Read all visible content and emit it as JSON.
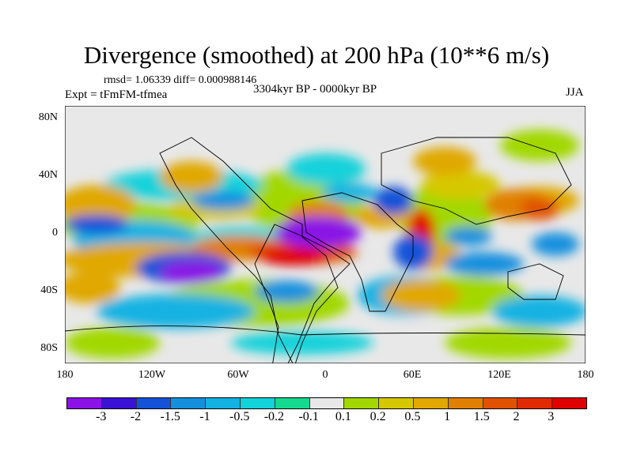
{
  "title": "Divergence (smoothed) at 200 hPa (10**6 m/s)",
  "stats": "rmsd= 1.06339 diff= 0.000988146",
  "experiment": "Expt = tFmFM-tfmea",
  "period": "3304kyr BP - 0000kyr BP",
  "season": "JJA",
  "y_ticks": [
    "80N",
    "40N",
    "0",
    "40S",
    "80S"
  ],
  "x_ticks": [
    "180",
    "120W",
    "60W",
    "0",
    "60E",
    "120E",
    "180"
  ],
  "colorbar": {
    "labels": [
      "-3",
      "-2",
      "-1.5",
      "-1",
      "-0.5",
      "-0.2",
      "-0.1",
      "0.1",
      "0.2",
      "0.5",
      "1",
      "1.5",
      "2",
      "3"
    ],
    "colors": [
      "#8a12e6",
      "#3a12d6",
      "#1452d8",
      "#1290de",
      "#12b2e2",
      "#12d2da",
      "#14da90",
      "#e8e8e8",
      "#a2d800",
      "#d6c800",
      "#e0a800",
      "#e08000",
      "#e05200",
      "#e02a00",
      "#e00000"
    ]
  }
}
